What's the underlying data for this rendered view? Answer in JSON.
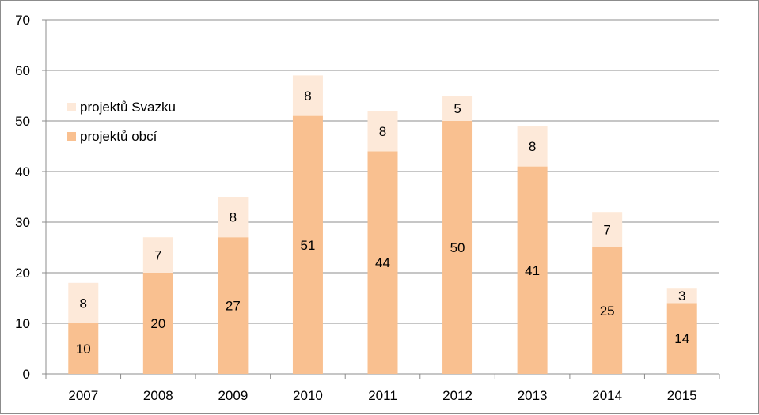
{
  "chart_data": {
    "type": "bar",
    "stacked": true,
    "title": "",
    "xlabel": "",
    "ylabel": "",
    "categories": [
      "2007",
      "2008",
      "2009",
      "2010",
      "2011",
      "2012",
      "2013",
      "2014",
      "2015"
    ],
    "series": [
      {
        "name": "projektů obcí",
        "values": [
          10,
          20,
          27,
          51,
          44,
          50,
          41,
          25,
          14
        ],
        "color": "#f9c090"
      },
      {
        "name": "projektů Svazku",
        "values": [
          8,
          7,
          8,
          8,
          8,
          5,
          8,
          7,
          3
        ],
        "color": "#fde9d9"
      }
    ],
    "ylim": [
      0,
      70
    ],
    "yticks": [
      0,
      10,
      20,
      30,
      40,
      50,
      60,
      70
    ],
    "grid": true,
    "legend_position": "left-upper, inside plot",
    "legend_order": [
      "projektů Svazku",
      "projektů obcí"
    ],
    "data_labels": true
  }
}
